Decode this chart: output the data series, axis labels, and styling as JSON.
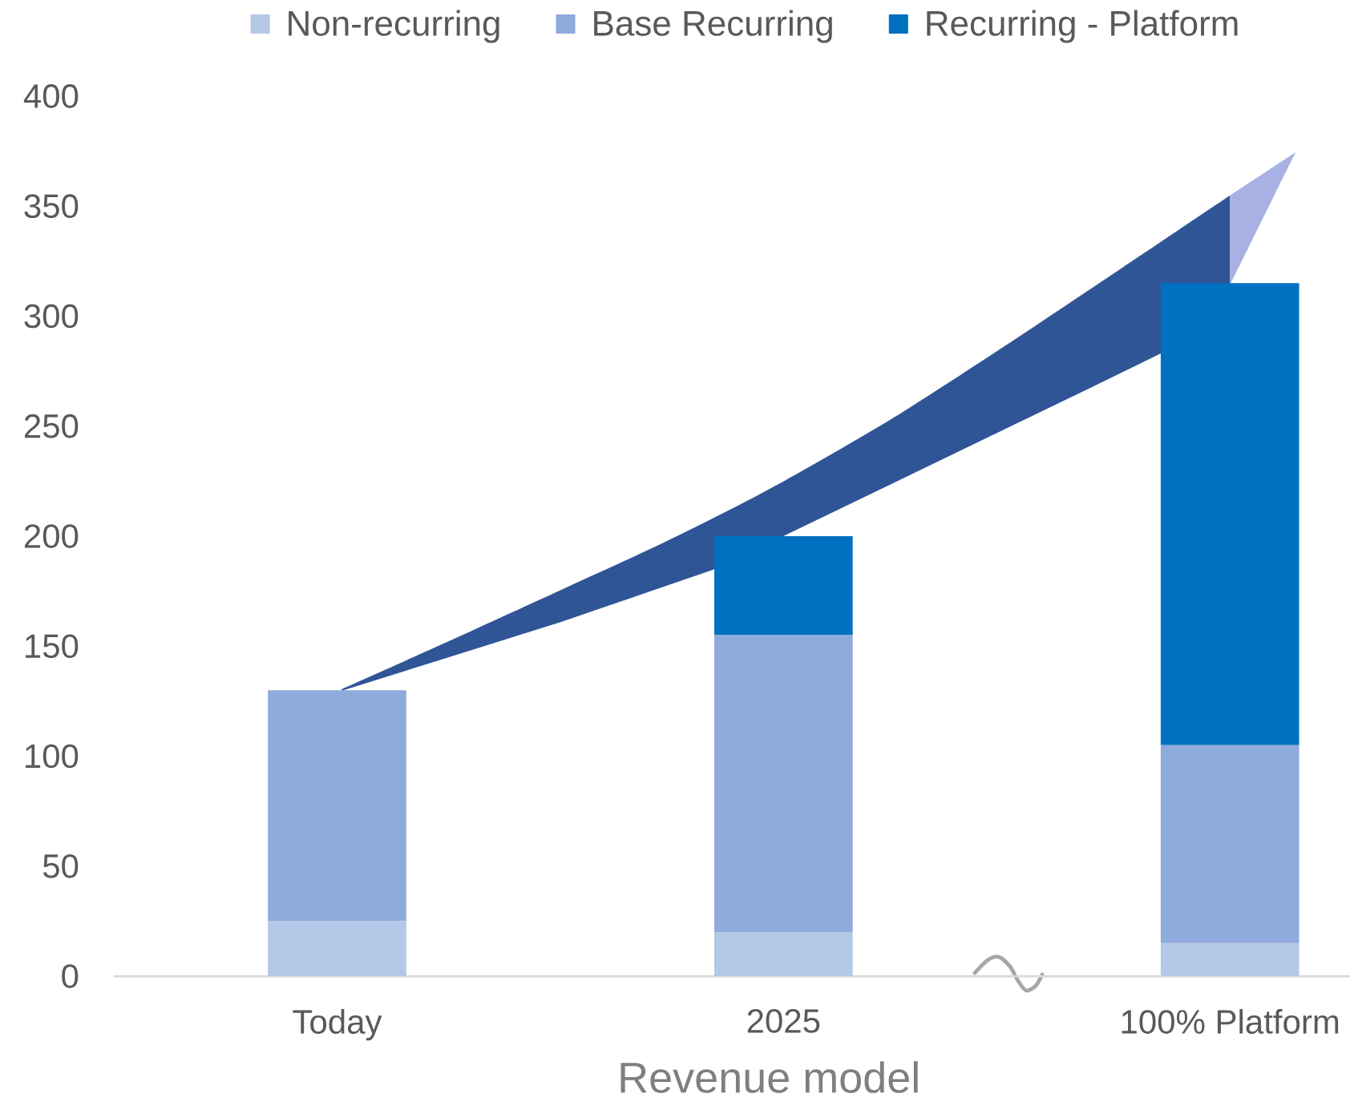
{
  "chart_data": {
    "type": "bar",
    "stacked": true,
    "categories": [
      "Today",
      "2025",
      "100% Platform"
    ],
    "xlabel": "Revenue model",
    "series": [
      {
        "name": "Non-recurring",
        "color": "#b4c7e7",
        "values": [
          25,
          20,
          15
        ]
      },
      {
        "name": "Base Recurring",
        "color": "#8faadc",
        "values": [
          105,
          135,
          90
        ]
      },
      {
        "name": "Recurring - Platform",
        "color": "#0070c0",
        "values": [
          null,
          45,
          210
        ]
      }
    ],
    "ylim": [
      0,
      400
    ],
    "yticks": [
      0,
      50,
      100,
      150,
      200,
      250,
      300,
      350,
      400
    ],
    "legend": "top"
  }
}
